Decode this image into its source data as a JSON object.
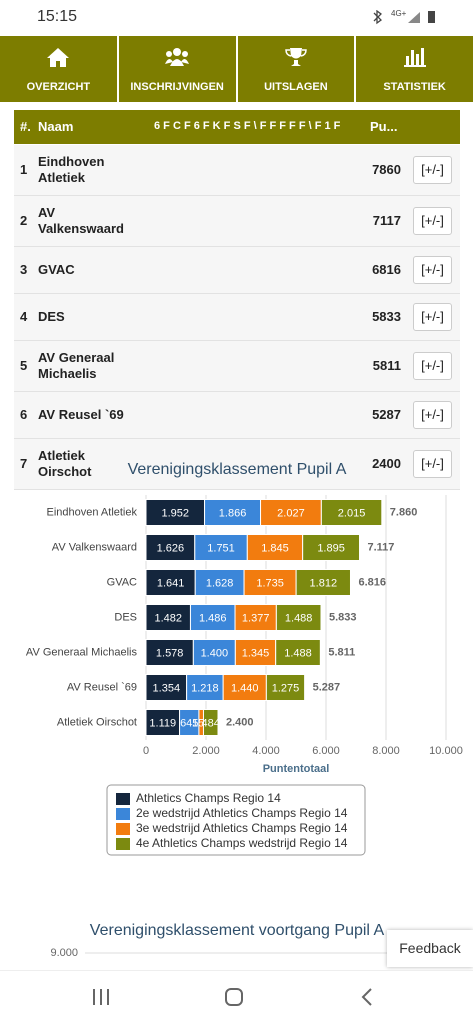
{
  "status": {
    "time": "15:15",
    "network": "4G+"
  },
  "nav": [
    "OVERZICHT",
    "INSCHRIJVINGEN",
    "UITSLAGEN",
    "STATISTIEK"
  ],
  "table": {
    "headers": [
      "#.",
      "Naam",
      "6 F C F 6 F K F S F \\ F F F F F \\ F 1 F",
      "Pu..."
    ],
    "rows": [
      [
        "1",
        "Eindhoven Atletiek",
        "7860",
        "[+/-]"
      ],
      [
        "2",
        "AV Valkenswaard",
        "7117",
        "[+/-]"
      ],
      [
        "3",
        "GVAC",
        "6816",
        "[+/-]"
      ],
      [
        "4",
        "DES",
        "5833",
        "[+/-]"
      ],
      [
        "5",
        "AV Generaal Michaelis",
        "5811",
        "[+/-]"
      ],
      [
        "6",
        "AV Reusel `69",
        "5287",
        "[+/-]"
      ],
      [
        "7",
        "Atletiek Oirschot",
        "2400",
        "[+/-]"
      ]
    ]
  },
  "chart_data": [
    {
      "type": "bar",
      "orientation": "horizontal",
      "stacked": true,
      "title": "Verenigingsklassement Pupil A",
      "x_label": "Puntentotaal",
      "categories": [
        "Eindhoven Atletiek",
        "AV Valkenswaard",
        "GVAC",
        "DES",
        "AV Generaal Michaelis",
        "AV Reusel `69",
        "Atletiek Oirschot"
      ],
      "series": [
        {
          "name": "Athletics Champs Regio 14",
          "color": "#14263d",
          "values": [
            1952,
            1626,
            1641,
            1482,
            1578,
            1354,
            1119
          ],
          "value_labels": [
            "1.952",
            "1.626",
            "1.641",
            "1.482",
            "1.578",
            "1.354",
            "1.119"
          ]
        },
        {
          "name": "2e wedstrijd Athletics Champs Regio 14",
          "color": "#3b86d9",
          "values": [
            1866,
            1751,
            1628,
            1486,
            1400,
            1218,
            645
          ],
          "value_labels": [
            "1.866",
            "1.751",
            "1.628",
            "1.486",
            "1.400",
            "1.218",
            "645"
          ]
        },
        {
          "name": "3e wedstrijd Athletics Champs Regio 14",
          "color": "#f27c0f",
          "values": [
            2027,
            1845,
            1735,
            1377,
            1345,
            1440,
            152
          ],
          "value_labels": [
            "2.027",
            "1.845",
            "1.735",
            "1.377",
            "1.345",
            "1.440",
            "152"
          ]
        },
        {
          "name": "4e Athletics Champs wedstrijd Regio 14",
          "color": "#7c8a10",
          "values": [
            2015,
            1895,
            1812,
            1488,
            1488,
            1275,
            484
          ],
          "value_labels": [
            "2.015",
            "1.895",
            "1.812",
            "1.488",
            "1.488",
            "1.275",
            "484"
          ]
        }
      ],
      "totals": {
        "values": [
          7860,
          7117,
          6816,
          5833,
          5811,
          5287,
          2400
        ],
        "value_labels": [
          "7.860",
          "7.117",
          "6.816",
          "5.833",
          "5.811",
          "5.287",
          "2.400"
        ]
      },
      "xlim": [
        0,
        10000
      ],
      "xticks": [
        0,
        {
          "value": 2000,
          "label": "2.000"
        },
        {
          "value": 4000,
          "label": "4.000"
        },
        {
          "value": 6000,
          "label": "6.000"
        },
        {
          "value": 8000,
          "label": "8.000"
        },
        {
          "value": 10000,
          "label": "10.000"
        }
      ],
      "grid": true
    },
    {
      "type": "line",
      "title": "Verenigingsklassement voortgang Pupil A",
      "yticks": [
        {
          "value": 9000,
          "label": "9.000"
        }
      ]
    }
  ],
  "feedback": "Feedback"
}
